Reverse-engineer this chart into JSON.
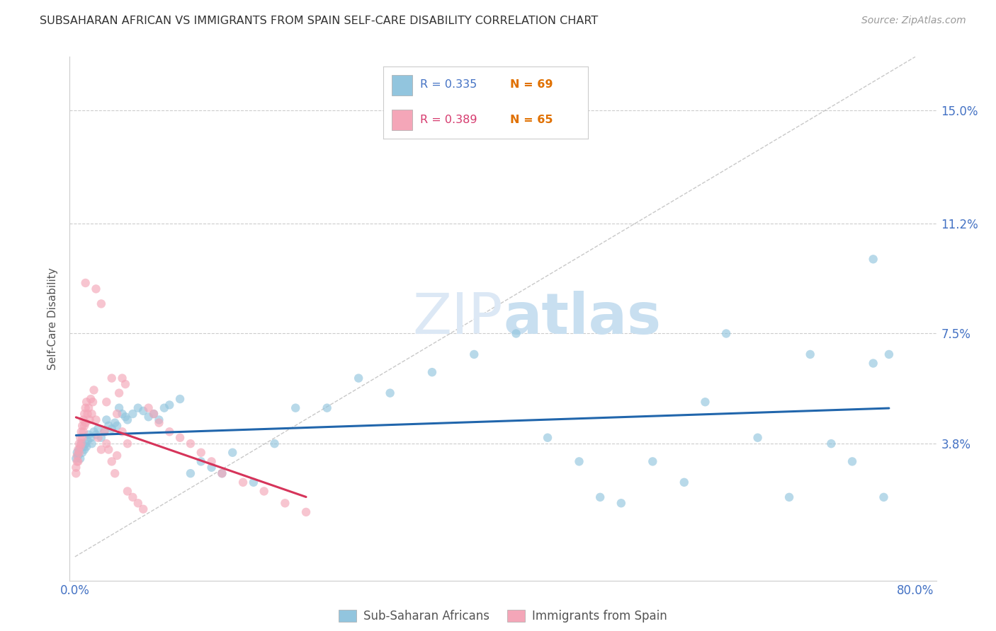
{
  "title": "SUBSAHARAN AFRICAN VS IMMIGRANTS FROM SPAIN SELF-CARE DISABILITY CORRELATION CHART",
  "source": "Source: ZipAtlas.com",
  "ylabel": "Self-Care Disability",
  "ytick_labels": [
    "15.0%",
    "11.2%",
    "7.5%",
    "3.8%"
  ],
  "ytick_values": [
    0.15,
    0.112,
    0.075,
    0.038
  ],
  "xlim": [
    -0.005,
    0.82
  ],
  "ylim": [
    -0.008,
    0.168
  ],
  "legend_label1": "Sub-Saharan Africans",
  "legend_label2": "Immigrants from Spain",
  "R1": "0.335",
  "N1": "69",
  "R2": "0.389",
  "N2": "65",
  "color_blue": "#92c5de",
  "color_pink": "#f4a6b8",
  "trendline_blue": "#2166ac",
  "trendline_pink": "#d6345a",
  "diagonal_color": "#bbbbbb",
  "background": "#ffffff",
  "blue_x": [
    0.001,
    0.002,
    0.003,
    0.004,
    0.005,
    0.006,
    0.007,
    0.008,
    0.009,
    0.01,
    0.011,
    0.012,
    0.013,
    0.015,
    0.016,
    0.018,
    0.02,
    0.022,
    0.025,
    0.028,
    0.03,
    0.032,
    0.035,
    0.038,
    0.04,
    0.042,
    0.045,
    0.048,
    0.05,
    0.055,
    0.06,
    0.065,
    0.07,
    0.075,
    0.08,
    0.085,
    0.09,
    0.1,
    0.11,
    0.12,
    0.13,
    0.14,
    0.15,
    0.17,
    0.19,
    0.21,
    0.24,
    0.27,
    0.3,
    0.34,
    0.38,
    0.42,
    0.45,
    0.48,
    0.5,
    0.52,
    0.55,
    0.58,
    0.6,
    0.62,
    0.65,
    0.68,
    0.7,
    0.72,
    0.74,
    0.76,
    0.76,
    0.77,
    0.775
  ],
  "blue_y": [
    0.033,
    0.035,
    0.034,
    0.036,
    0.033,
    0.038,
    0.035,
    0.037,
    0.036,
    0.038,
    0.037,
    0.039,
    0.041,
    0.04,
    0.038,
    0.042,
    0.041,
    0.043,
    0.04,
    0.042,
    0.046,
    0.044,
    0.043,
    0.045,
    0.044,
    0.05,
    0.048,
    0.047,
    0.046,
    0.048,
    0.05,
    0.049,
    0.047,
    0.048,
    0.046,
    0.05,
    0.051,
    0.053,
    0.028,
    0.032,
    0.03,
    0.028,
    0.035,
    0.025,
    0.038,
    0.05,
    0.05,
    0.06,
    0.055,
    0.062,
    0.068,
    0.075,
    0.04,
    0.032,
    0.02,
    0.018,
    0.032,
    0.025,
    0.052,
    0.075,
    0.04,
    0.02,
    0.068,
    0.038,
    0.032,
    0.1,
    0.065,
    0.02,
    0.068
  ],
  "pink_x": [
    0.001,
    0.001,
    0.002,
    0.002,
    0.003,
    0.003,
    0.004,
    0.004,
    0.005,
    0.005,
    0.006,
    0.006,
    0.007,
    0.007,
    0.008,
    0.008,
    0.009,
    0.009,
    0.01,
    0.01,
    0.011,
    0.012,
    0.013,
    0.014,
    0.015,
    0.016,
    0.017,
    0.018,
    0.02,
    0.022,
    0.025,
    0.028,
    0.03,
    0.032,
    0.035,
    0.038,
    0.04,
    0.042,
    0.045,
    0.048,
    0.05,
    0.055,
    0.06,
    0.065,
    0.07,
    0.075,
    0.08,
    0.09,
    0.1,
    0.11,
    0.12,
    0.13,
    0.14,
    0.16,
    0.18,
    0.2,
    0.22,
    0.02,
    0.025,
    0.03,
    0.035,
    0.04,
    0.045,
    0.05,
    0.01
  ],
  "pink_y": [
    0.03,
    0.028,
    0.034,
    0.032,
    0.036,
    0.032,
    0.038,
    0.035,
    0.04,
    0.037,
    0.042,
    0.038,
    0.044,
    0.04,
    0.046,
    0.042,
    0.048,
    0.044,
    0.05,
    0.045,
    0.052,
    0.048,
    0.05,
    0.046,
    0.053,
    0.048,
    0.052,
    0.056,
    0.046,
    0.04,
    0.036,
    0.042,
    0.038,
    0.036,
    0.032,
    0.028,
    0.034,
    0.055,
    0.06,
    0.058,
    0.022,
    0.02,
    0.018,
    0.016,
    0.05,
    0.048,
    0.045,
    0.042,
    0.04,
    0.038,
    0.035,
    0.032,
    0.028,
    0.025,
    0.022,
    0.018,
    0.015,
    0.09,
    0.085,
    0.052,
    0.06,
    0.048,
    0.042,
    0.038,
    0.092
  ]
}
